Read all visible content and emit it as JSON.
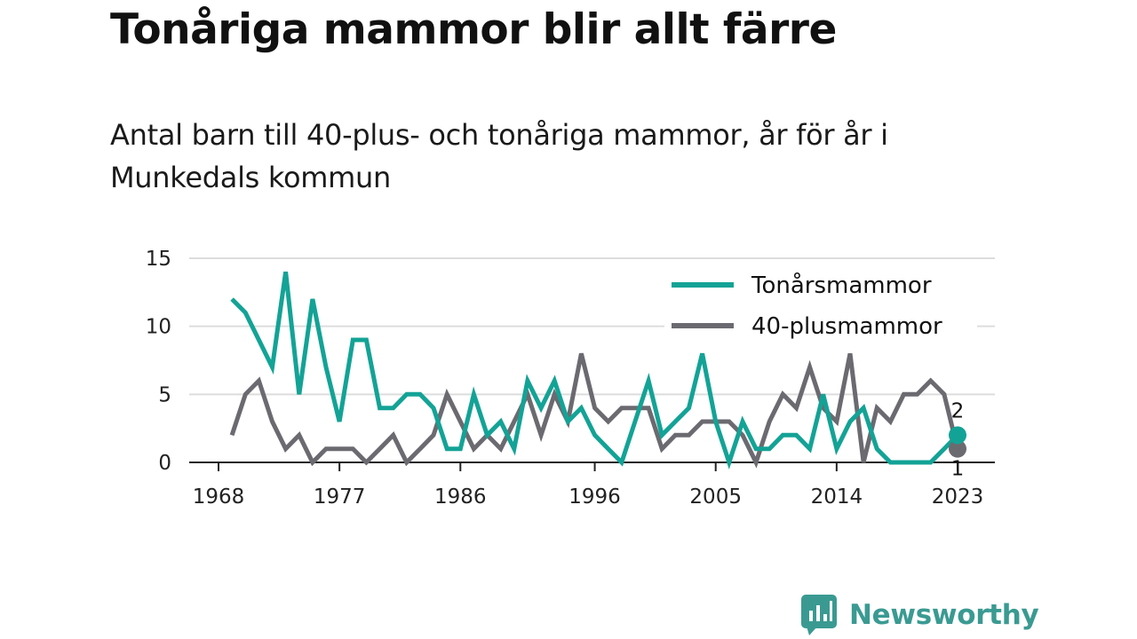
{
  "header": {
    "title": "Tonåriga mammor blir allt färre",
    "subtitle": "Antal barn till 40-plus- och tonåriga mammor, år för år i Munkedals kommun"
  },
  "brand": {
    "name": "Newsworthy",
    "icon": "newsworthy-logo-icon"
  },
  "colors": {
    "teen": "#13a396",
    "forty": "#6b6a70",
    "grid": "#dddddd",
    "axis": "#222222"
  },
  "chart_data": {
    "type": "line",
    "title": "Tonåriga mammor blir allt färre",
    "xlabel": "",
    "ylabel": "",
    "xlim": [
      1968,
      2023
    ],
    "ylim": [
      0,
      15
    ],
    "x_ticks": [
      "1968",
      "1977",
      "1986",
      "1996",
      "2005",
      "2014",
      "2023"
    ],
    "y_ticks": [
      "0",
      "5",
      "10",
      "15"
    ],
    "grid": true,
    "legend": "top-right",
    "x": [
      1969,
      1970,
      1971,
      1972,
      1973,
      1974,
      1975,
      1976,
      1977,
      1978,
      1979,
      1980,
      1981,
      1982,
      1983,
      1984,
      1985,
      1986,
      1987,
      1988,
      1989,
      1990,
      1991,
      1992,
      1993,
      1994,
      1995,
      1996,
      1997,
      1998,
      1999,
      2000,
      2001,
      2002,
      2003,
      2004,
      2005,
      2006,
      2007,
      2008,
      2009,
      2010,
      2011,
      2012,
      2013,
      2014,
      2015,
      2016,
      2017,
      2018,
      2019,
      2020,
      2021,
      2022,
      2023
    ],
    "series": [
      {
        "name": "Tonårsmammor",
        "values": [
          12,
          11,
          9,
          7,
          14,
          5,
          12,
          7,
          3,
          9,
          9,
          4,
          4,
          5,
          5,
          4,
          1,
          1,
          5,
          2,
          3,
          1,
          6,
          4,
          6,
          3,
          4,
          2,
          1,
          0,
          3,
          6,
          2,
          3,
          4,
          8,
          3,
          0,
          3,
          1,
          1,
          2,
          2,
          1,
          5,
          1,
          3,
          4,
          1,
          0,
          0,
          0,
          0,
          1,
          2
        ],
        "end_label": "2"
      },
      {
        "name": "40-plusmammor",
        "values": [
          2,
          5,
          6,
          3,
          1,
          2,
          0,
          1,
          1,
          1,
          0,
          1,
          2,
          0,
          1,
          2,
          5,
          3,
          1,
          2,
          1,
          3,
          5,
          2,
          5,
          3,
          8,
          4,
          3,
          4,
          4,
          4,
          1,
          2,
          2,
          3,
          3,
          3,
          2,
          0,
          3,
          5,
          4,
          7,
          4,
          3,
          8,
          0,
          4,
          3,
          5,
          5,
          6,
          5,
          1
        ],
        "end_label": "1"
      }
    ]
  }
}
